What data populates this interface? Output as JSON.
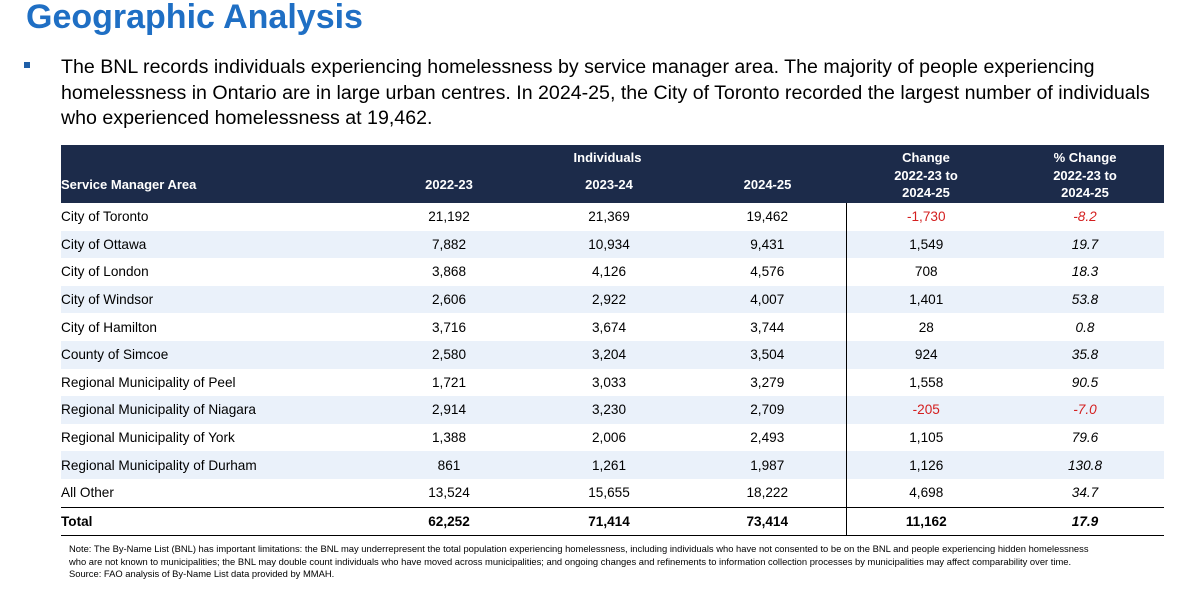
{
  "title": "Geographic Analysis",
  "paragraph": "The BNL records individuals experiencing homelessness by service manager area. The majority of people experiencing homelessness in Ontario are in large urban centres. In 2024-25, the City of Toronto recorded the largest number of individuals who experienced homelessness at 19,462.",
  "table": {
    "group_header": "Individuals",
    "col_area": "Service Manager Area",
    "col_y1": "2022-23",
    "col_y2": "2023-24",
    "col_y3": "2024-25",
    "change_l1": "Change",
    "change_l2": "2022-23 to",
    "change_l3": "2024-25",
    "pct_l1": "% Change",
    "pct_l2": "2022-23 to",
    "pct_l3": "2024-25",
    "rows": [
      {
        "area": "City of Toronto",
        "y1": "21,192",
        "y2": "21,369",
        "y3": "19,462",
        "change": "-1,730",
        "pct": "-8.2"
      },
      {
        "area": "City of Ottawa",
        "y1": "7,882",
        "y2": "10,934",
        "y3": "9,431",
        "change": "1,549",
        "pct": "19.7"
      },
      {
        "area": "City of London",
        "y1": "3,868",
        "y2": "4,126",
        "y3": "4,576",
        "change": "708",
        "pct": "18.3"
      },
      {
        "area": "City of Windsor",
        "y1": "2,606",
        "y2": "2,922",
        "y3": "4,007",
        "change": "1,401",
        "pct": "53.8"
      },
      {
        "area": "City of Hamilton",
        "y1": "3,716",
        "y2": "3,674",
        "y3": "3,744",
        "change": "28",
        "pct": "0.8"
      },
      {
        "area": "County of Simcoe",
        "y1": "2,580",
        "y2": "3,204",
        "y3": "3,504",
        "change": "924",
        "pct": "35.8"
      },
      {
        "area": "Regional Municipality of Peel",
        "y1": "1,721",
        "y2": "3,033",
        "y3": "3,279",
        "change": "1,558",
        "pct": "90.5"
      },
      {
        "area": "Regional Municipality of Niagara",
        "y1": "2,914",
        "y2": "3,230",
        "y3": "2,709",
        "change": "-205",
        "pct": "-7.0"
      },
      {
        "area": "Regional Municipality of York",
        "y1": "1,388",
        "y2": "2,006",
        "y3": "2,493",
        "change": "1,105",
        "pct": "79.6"
      },
      {
        "area": "Regional Municipality of Durham",
        "y1": "861",
        "y2": "1,261",
        "y3": "1,987",
        "change": "1,126",
        "pct": "130.8"
      },
      {
        "area": "All Other",
        "y1": "13,524",
        "y2": "15,655",
        "y3": "18,222",
        "change": "4,698",
        "pct": "34.7"
      }
    ],
    "total": {
      "area": "Total",
      "y1": "62,252",
      "y2": "71,414",
      "y3": "73,414",
      "change": "11,162",
      "pct": "17.9"
    }
  },
  "note": "Note: The By-Name List (BNL) has important limitations: the BNL may underrepresent the total population experiencing homelessness, including individuals who have not consented to be on the BNL and people experiencing hidden homelessness who are not known to municipalities; the BNL may double count individuals who have moved across municipalities; and ongoing changes and refinements to information collection processes by municipalities may affect comparability over time.",
  "source": "Source: FAO analysis of By-Name List data provided by MMAH.",
  "colors": {
    "title": "#1f6fc4",
    "header_bg": "#1c2b4a",
    "band": "#eaf1fa",
    "negative": "#d41f1f"
  }
}
